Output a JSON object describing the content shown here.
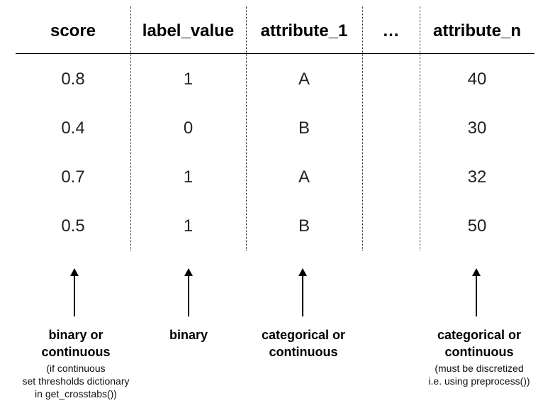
{
  "table": {
    "headers": [
      "score",
      "label_value",
      "attribute_1",
      "…",
      "attribute_n"
    ],
    "rows": [
      [
        "0.8",
        "1",
        "A",
        "",
        "40"
      ],
      [
        "0.4",
        "0",
        "B",
        "",
        "30"
      ],
      [
        "0.7",
        "1",
        "A",
        "",
        "32"
      ],
      [
        "0.5",
        "1",
        "B",
        "",
        "50"
      ]
    ]
  },
  "annotations": {
    "score": {
      "main": "binary or\ncontinuous",
      "sub": "(if continuous\nset thresholds dictionary\nin get_crosstabs())"
    },
    "label_value": {
      "main": "binary",
      "sub": ""
    },
    "attribute_1": {
      "main": "categorical or\ncontinuous",
      "sub": ""
    },
    "attribute_n": {
      "main": "categorical or\ncontinuous",
      "sub": "(must be discretized\ni.e. using preprocess())"
    }
  }
}
